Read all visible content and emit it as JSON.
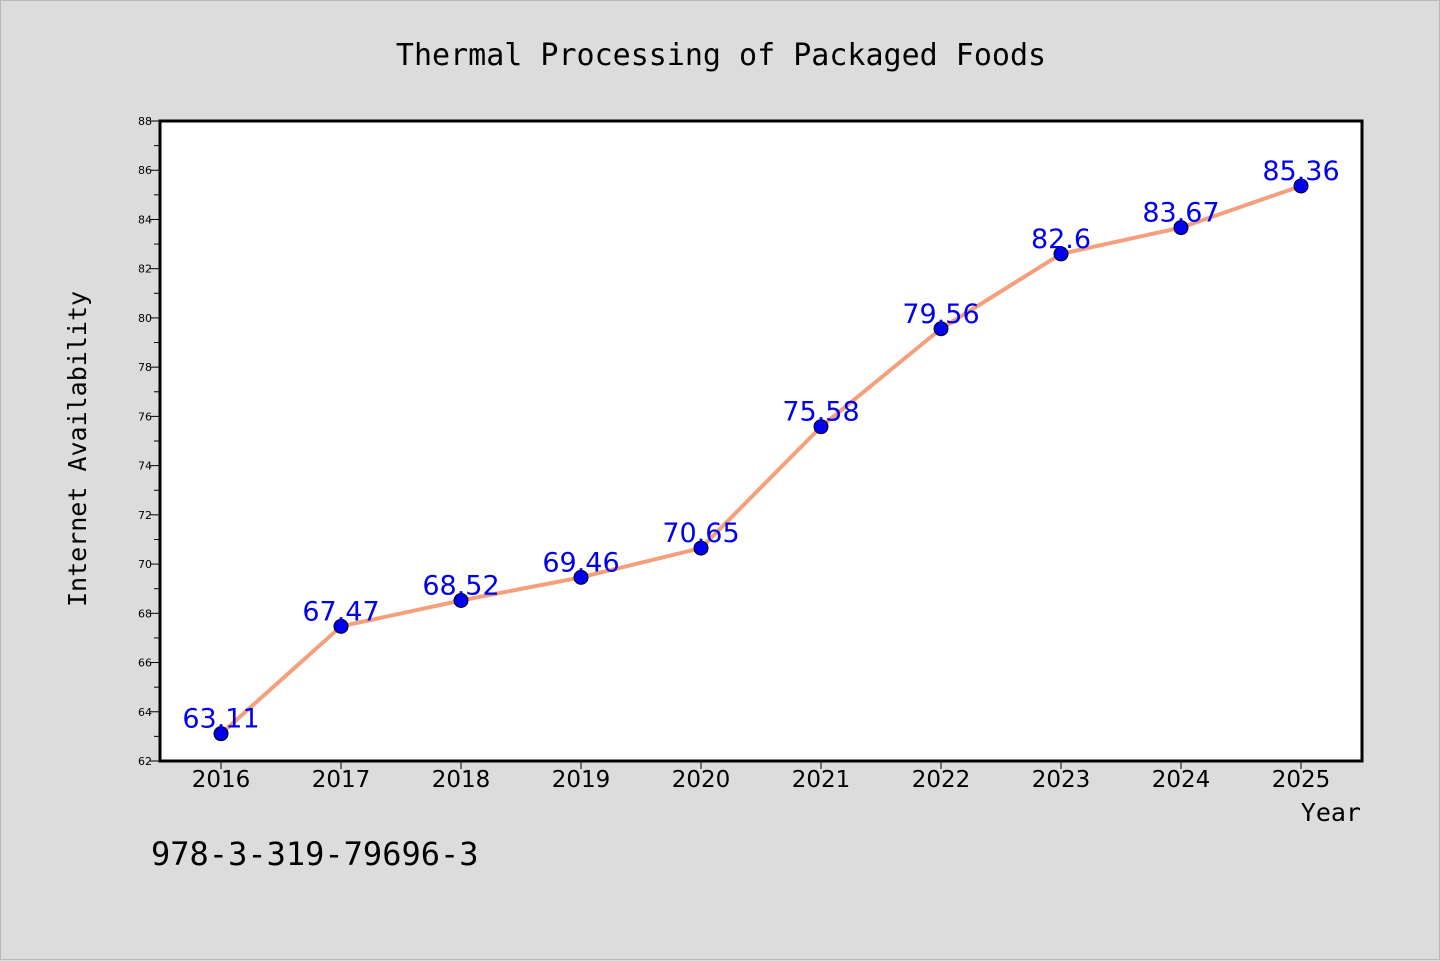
{
  "chart_data": {
    "type": "line",
    "title": "Thermal Processing of Packaged Foods",
    "xlabel": "Year",
    "ylabel": "Internet Availability",
    "categories": [
      "2016",
      "2017",
      "2018",
      "2019",
      "2020",
      "2021",
      "2022",
      "2023",
      "2024",
      "2025"
    ],
    "series": [
      {
        "values": [
          63.11,
          67.47,
          68.52,
          69.46,
          70.65,
          75.58,
          79.56,
          82.6,
          83.67,
          85.36
        ],
        "line_color": "#f4a07c",
        "marker_color": "#0000ee",
        "label_color": "#0000ee"
      }
    ],
    "ylim": [
      62,
      88
    ],
    "yticks": [
      "62",
      "64",
      "66",
      "68",
      "70",
      "72",
      "74",
      "76",
      "78",
      "80",
      "82",
      "84",
      "86",
      "88"
    ],
    "grid": false,
    "legend": false
  },
  "footer": {
    "code": "978-3-319-79696-3"
  }
}
